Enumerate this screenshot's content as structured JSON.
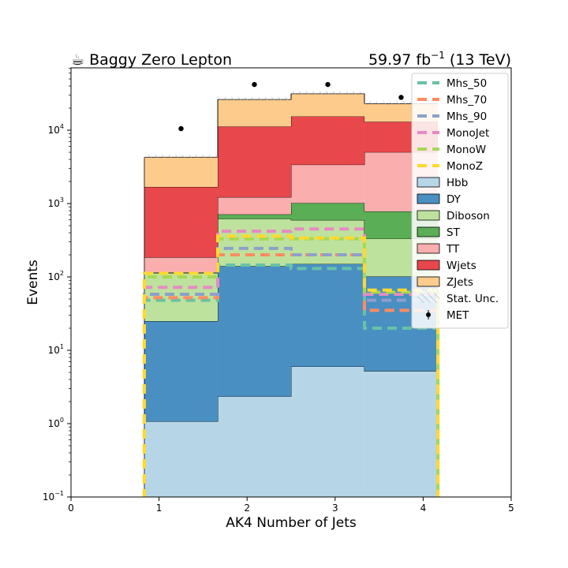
{
  "chart_data": {
    "type": "bar",
    "title_left": "☕ Baggy Zero Lepton",
    "title_right_main": "59.97 fb",
    "title_right_sup": "−1",
    "title_right_tail": " (13 TeV)",
    "xlabel": "AK4 Number of Jets",
    "ylabel": "Events",
    "xlim": [
      0,
      5
    ],
    "ylim_log10": [
      -1,
      4.85
    ],
    "yscale": "log",
    "x_ticks": [
      {
        "v": 0,
        "label": "0"
      },
      {
        "v": 1,
        "label": "1"
      },
      {
        "v": 2,
        "label": "2"
      },
      {
        "v": 3,
        "label": "3"
      },
      {
        "v": 4,
        "label": "4"
      },
      {
        "v": 5,
        "label": "5"
      }
    ],
    "y_ticks": [
      {
        "exp": -1,
        "base": "10",
        "sup": "−1"
      },
      {
        "exp": 0,
        "base": "10",
        "sup": "0"
      },
      {
        "exp": 1,
        "base": "10",
        "sup": "1"
      },
      {
        "exp": 2,
        "base": "10",
        "sup": "2"
      },
      {
        "exp": 3,
        "base": "10",
        "sup": "3"
      },
      {
        "exp": 4,
        "base": "10",
        "sup": "4"
      }
    ],
    "bin_edges": [
      0.833,
      1.667,
      2.5,
      3.333,
      4.167
    ],
    "stack_order_bottom_to_top": [
      "Hbb",
      "DY",
      "Diboson",
      "ST",
      "TT",
      "Wjets",
      "ZJets"
    ],
    "stack": [
      {
        "name": "Hbb",
        "color": "#b6d6e8",
        "values": [
          1.07,
          2.35,
          6.0,
          5.2
        ]
      },
      {
        "name": "DY",
        "color": "#4a8fc2",
        "values": [
          23.9,
          138,
          144,
          96
        ]
      },
      {
        "name": "Diboson",
        "color": "#bde29e",
        "values": [
          88,
          482,
          446,
          230
        ]
      },
      {
        "name": "ST",
        "color": "#5aae55",
        "values": [
          2,
          90,
          420,
          450
        ]
      },
      {
        "name": "TT",
        "color": "#fbaeae",
        "values": [
          70,
          510,
          2370,
          4240
        ]
      },
      {
        "name": "Wjets",
        "color": "#e8474b",
        "values": [
          1500,
          10000,
          12000,
          8000
        ]
      },
      {
        "name": "ZJets",
        "color": "#fdcb8b",
        "values": [
          2600,
          15000,
          16000,
          10000
        ]
      }
    ],
    "signals": [
      {
        "name": "Mhs_50",
        "color": "#66c2a5",
        "values": [
          48,
          145,
          130,
          20
        ]
      },
      {
        "name": "Mhs_70",
        "color": "#fc8d62",
        "values": [
          52,
          200,
          200,
          35
        ]
      },
      {
        "name": "Mhs_90",
        "color": "#8da0cb",
        "values": [
          58,
          245,
          200,
          48
        ]
      },
      {
        "name": "MonoJet",
        "color": "#e78ac3",
        "values": [
          72,
          420,
          450,
          58
        ]
      },
      {
        "name": "MonoW",
        "color": "#a6d854",
        "values": [
          100,
          330,
          330,
          62
        ]
      },
      {
        "name": "MonoZ",
        "color": "#ffd92f",
        "values": [
          112,
          360,
          340,
          66
        ]
      }
    ],
    "data": {
      "name": "MET",
      "x": [
        1.25,
        2.083,
        2.917,
        3.75
      ],
      "values": [
        10500,
        42000,
        42000,
        28000
      ]
    },
    "legend": {
      "placement": "top-right",
      "entries": [
        {
          "label": "Mhs_50",
          "kind": "dash",
          "color": "#66c2a5"
        },
        {
          "label": "Mhs_70",
          "kind": "dash",
          "color": "#fc8d62"
        },
        {
          "label": "Mhs_90",
          "kind": "dash",
          "color": "#8da0cb"
        },
        {
          "label": "MonoJet",
          "kind": "dash",
          "color": "#e78ac3"
        },
        {
          "label": "MonoW",
          "kind": "dash",
          "color": "#a6d854"
        },
        {
          "label": "MonoZ",
          "kind": "dash",
          "color": "#ffd92f"
        },
        {
          "label": "Hbb",
          "kind": "box",
          "color": "#b6d6e8"
        },
        {
          "label": "DY",
          "kind": "box",
          "color": "#4a8fc2"
        },
        {
          "label": "Diboson",
          "kind": "box",
          "color": "#bde29e"
        },
        {
          "label": "ST",
          "kind": "box",
          "color": "#5aae55"
        },
        {
          "label": "TT",
          "kind": "box",
          "color": "#fbaeae"
        },
        {
          "label": "Wjets",
          "kind": "box",
          "color": "#e8474b"
        },
        {
          "label": "ZJets",
          "kind": "box",
          "color": "#fdcb8b"
        },
        {
          "label": "Stat. Unc.",
          "kind": "hatch",
          "color": "#9fb6cd"
        },
        {
          "label": "MET",
          "kind": "point",
          "color": "#000000"
        }
      ]
    }
  }
}
